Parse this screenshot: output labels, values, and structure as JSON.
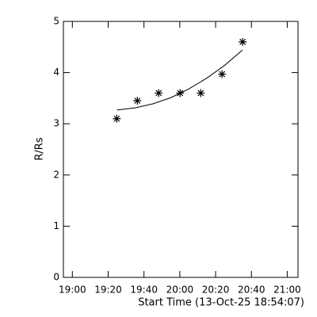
{
  "chart_data": {
    "type": "scatter",
    "xlabel": "Start Time (13-Oct-25 18:54:07)",
    "ylabel": "R/Rs",
    "xlim": [
      -5,
      126
    ],
    "ylim": [
      0,
      5
    ],
    "xticks": [
      {
        "value": 0,
        "label": "19:00"
      },
      {
        "value": 20,
        "label": "19:20"
      },
      {
        "value": 40,
        "label": "19:40"
      },
      {
        "value": 60,
        "label": "20:00"
      },
      {
        "value": 80,
        "label": "20:20"
      },
      {
        "value": 100,
        "label": "20:40"
      },
      {
        "value": 120,
        "label": "21:00"
      }
    ],
    "yticks": [
      0,
      1,
      2,
      3,
      4,
      5
    ],
    "series": [
      {
        "mode": "markers",
        "color": "#000000",
        "x": [
          24.8,
          36.3,
          48.2,
          60.2,
          71.7,
          83.6,
          95.1
        ],
        "values": [
          3.1,
          3.45,
          3.6,
          3.6,
          3.6,
          3.97,
          4.6
        ]
      },
      {
        "mode": "line",
        "color": "#000000",
        "x": [
          25,
          35,
          45,
          55,
          65,
          75,
          85,
          95
        ],
        "values": [
          3.27,
          3.31,
          3.39,
          3.51,
          3.68,
          3.89,
          4.14,
          4.44
        ]
      }
    ]
  }
}
